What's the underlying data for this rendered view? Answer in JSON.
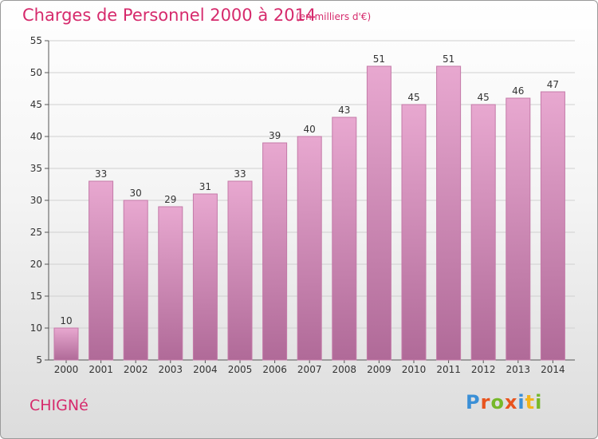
{
  "header": {
    "title": "Charges de Personnel 2000 à 2014",
    "subtitle": "(en milliers d'€)"
  },
  "footer": {
    "commune": "CHIGNé",
    "logo": "Proxiti"
  },
  "colors": {
    "title": "#d62a6c",
    "bar_top": "#e8a8d0",
    "bar_bottom": "#b06a98",
    "logo_letters": [
      "#3a8fd6",
      "#e8541e",
      "#76b82a",
      "#e8541e",
      "#3a8fd6",
      "#f2b41c",
      "#76b82a"
    ]
  },
  "chart_data": {
    "type": "bar",
    "categories": [
      "2000",
      "2001",
      "2002",
      "2003",
      "2004",
      "2005",
      "2006",
      "2007",
      "2008",
      "2009",
      "2010",
      "2011",
      "2012",
      "2013",
      "2014"
    ],
    "values": [
      10,
      33,
      30,
      29,
      31,
      33,
      39,
      40,
      43,
      51,
      45,
      51,
      45,
      46,
      47
    ],
    "ylim": [
      5,
      55
    ],
    "yticks": [
      5,
      10,
      15,
      20,
      25,
      30,
      35,
      40,
      45,
      50,
      55
    ],
    "grid": true,
    "data_labels": true
  }
}
